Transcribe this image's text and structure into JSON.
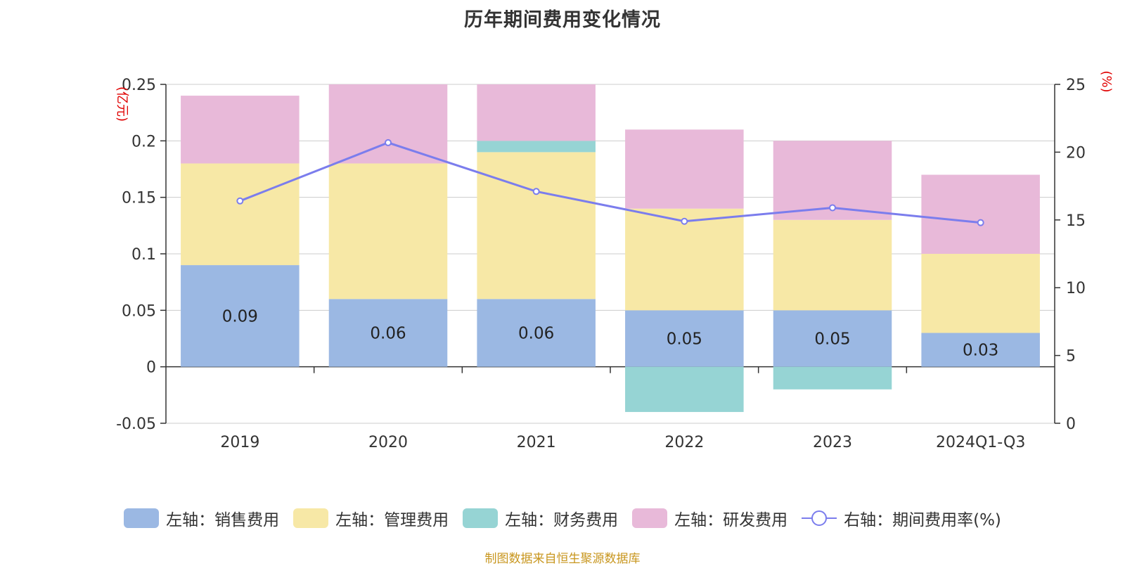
{
  "chart_data": {
    "type": "bar",
    "title": "历年期间费用变化情况",
    "categories": [
      "2019",
      "2020",
      "2021",
      "2022",
      "2023",
      "2024Q1-Q3"
    ],
    "y_left": {
      "unit": "(亿元)",
      "ylim": [
        -0.05,
        0.25
      ],
      "ticks": [
        "0.25",
        "0.2",
        "0.15",
        "0.1",
        "0.05",
        "0",
        "-0.05"
      ]
    },
    "y_right": {
      "unit": "(%)",
      "ylim": [
        0,
        25
      ],
      "ticks": [
        "25",
        "20",
        "15",
        "10",
        "5",
        "0"
      ]
    },
    "series": [
      {
        "name": "左轴：销售费用",
        "type": "bar",
        "axis": "left",
        "color": "#9bb8e3",
        "values": [
          0.09,
          0.06,
          0.06,
          0.05,
          0.05,
          0.03
        ],
        "labels": [
          "0.09",
          "0.06",
          "0.06",
          "0.05",
          "0.05",
          "0.03"
        ]
      },
      {
        "name": "左轴：管理费用",
        "type": "bar",
        "axis": "left",
        "color": "#f7e8a6",
        "values": [
          0.09,
          0.12,
          0.13,
          0.09,
          0.08,
          0.07
        ]
      },
      {
        "name": "左轴：财务费用",
        "type": "bar",
        "axis": "left",
        "color": "#96d4d4",
        "values": [
          0,
          0,
          0.01,
          -0.04,
          -0.02,
          0
        ]
      },
      {
        "name": "左轴：研发费用",
        "type": "bar",
        "axis": "left",
        "color": "#e8b9d9",
        "values": [
          0.06,
          0.07,
          0.05,
          0.07,
          0.07,
          0.07
        ]
      },
      {
        "name": "右轴：期间费用率(%)",
        "type": "line",
        "axis": "right",
        "color": "#7b7ded",
        "values": [
          16.4,
          20.7,
          17.1,
          14.9,
          15.9,
          14.8
        ]
      }
    ],
    "grid": true,
    "legend_position": "bottom"
  },
  "source_note": "制图数据来自恒生聚源数据库"
}
